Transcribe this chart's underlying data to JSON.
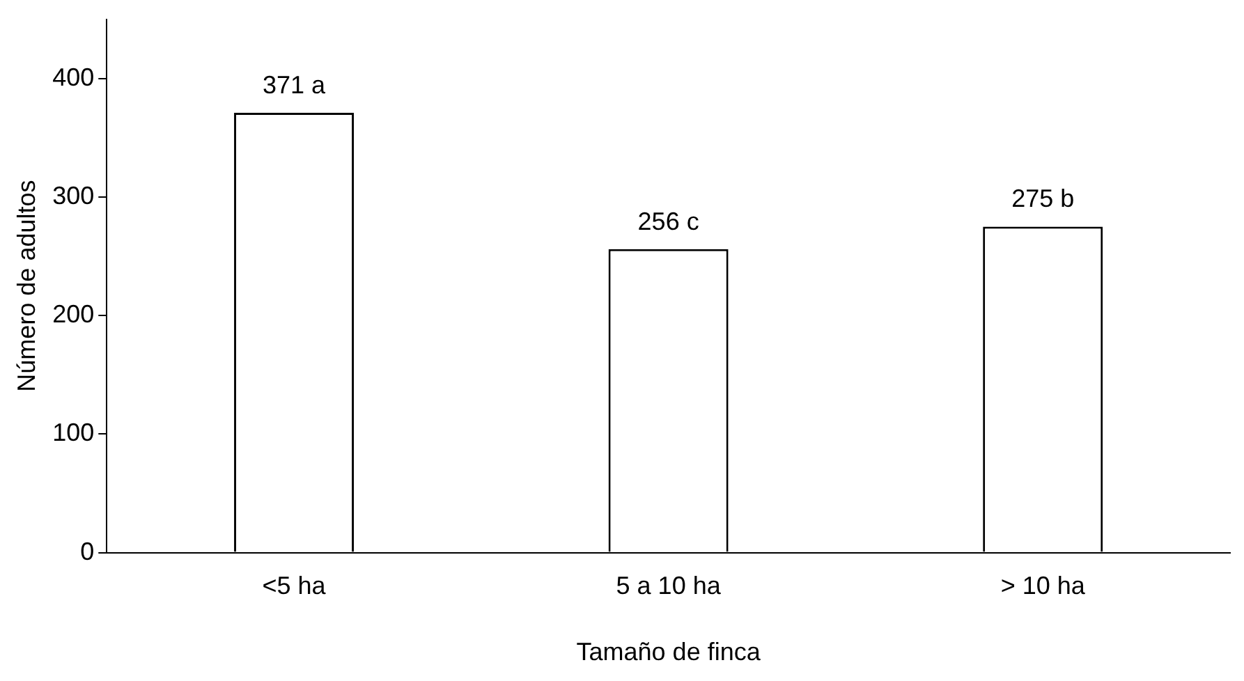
{
  "chart_data": {
    "type": "bar",
    "xlabel": "Tamaño de finca",
    "ylabel": "Número de adultos",
    "categories": [
      "<5 ha",
      "5 a 10 ha",
      "> 10 ha"
    ],
    "values": [
      371,
      256,
      275
    ],
    "value_labels": [
      "371 a",
      "256 c",
      "275 b"
    ],
    "color": "#ffffff",
    "ylim": [
      0,
      450
    ],
    "yticks": [
      0,
      100,
      200,
      300,
      400
    ],
    "grid": false,
    "legend": false
  }
}
